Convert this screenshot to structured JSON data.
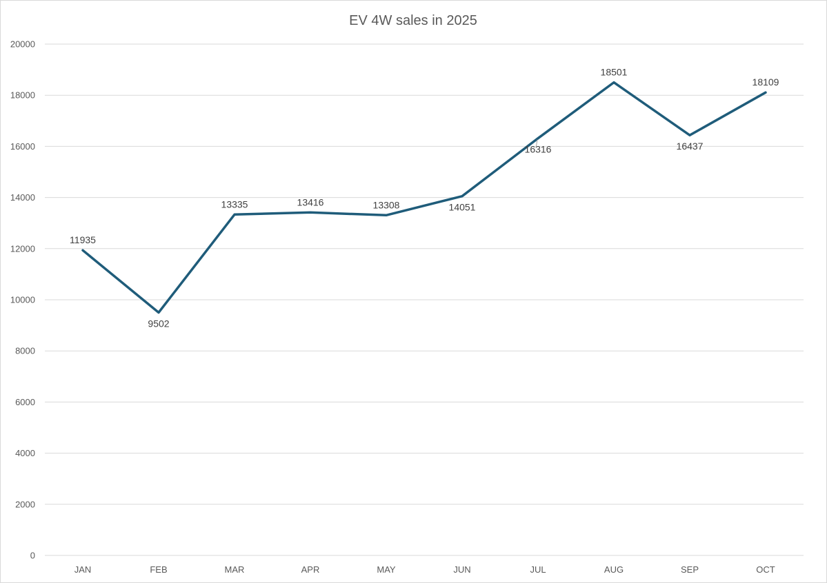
{
  "chart_data": {
    "type": "line",
    "title": "EV 4W sales in 2025",
    "xlabel": "",
    "ylabel": "",
    "categories": [
      "JAN",
      "FEB",
      "MAR",
      "APR",
      "MAY",
      "JUN",
      "JUL",
      "AUG",
      "SEP",
      "OCT"
    ],
    "series": [
      {
        "name": "EV 4W sales",
        "values": [
          11935,
          9502,
          13335,
          13416,
          13308,
          14051,
          16316,
          18501,
          16437,
          18109
        ],
        "color": "#1f5c7a"
      }
    ],
    "ylim": [
      0,
      20000
    ],
    "yticks": [
      0,
      2000,
      4000,
      6000,
      8000,
      10000,
      12000,
      14000,
      16000,
      18000,
      20000
    ],
    "grid": true,
    "legend": "none",
    "data_labels": true,
    "label_positions": [
      "above",
      "below",
      "above",
      "above",
      "above",
      "below",
      "below",
      "above",
      "below",
      "above"
    ]
  }
}
